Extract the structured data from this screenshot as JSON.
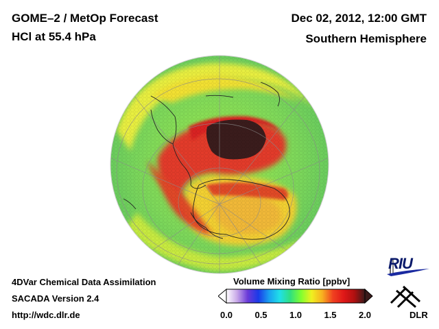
{
  "header": {
    "title": "GOME–2 / MetOp Forecast",
    "subtitle": "HCl at 55.4 hPa",
    "datetime": "Dec 02, 2012, 12:00 GMT",
    "region": "Southern Hemisphere"
  },
  "footer": {
    "line1": "4DVar Chemical Data Assimilation",
    "line2": "SACADA Version 2.4",
    "line3": "http://wdc.dlr.de"
  },
  "colorbar": {
    "title": "Volume Mixing Ratio [ppbv]",
    "ticks": [
      "0.0",
      "0.5",
      "1.0",
      "1.5",
      "2.0"
    ],
    "min": 0.0,
    "max": 2.0,
    "colors": [
      "#ffffff",
      "#c8a8e8",
      "#6a3ad8",
      "#1a3ae8",
      "#1aa0f0",
      "#20e0e8",
      "#30e080",
      "#80ff30",
      "#f0f020",
      "#f8b020",
      "#f04020",
      "#e01818",
      "#b01010",
      "#3a1a1a"
    ]
  },
  "logos": {
    "riu": "RIU",
    "dlr": "DLR"
  },
  "icons": {
    "globe": "southern-hemisphere-globe",
    "riu": "riu-logo-icon",
    "dlr": "dlr-logo-icon"
  }
}
